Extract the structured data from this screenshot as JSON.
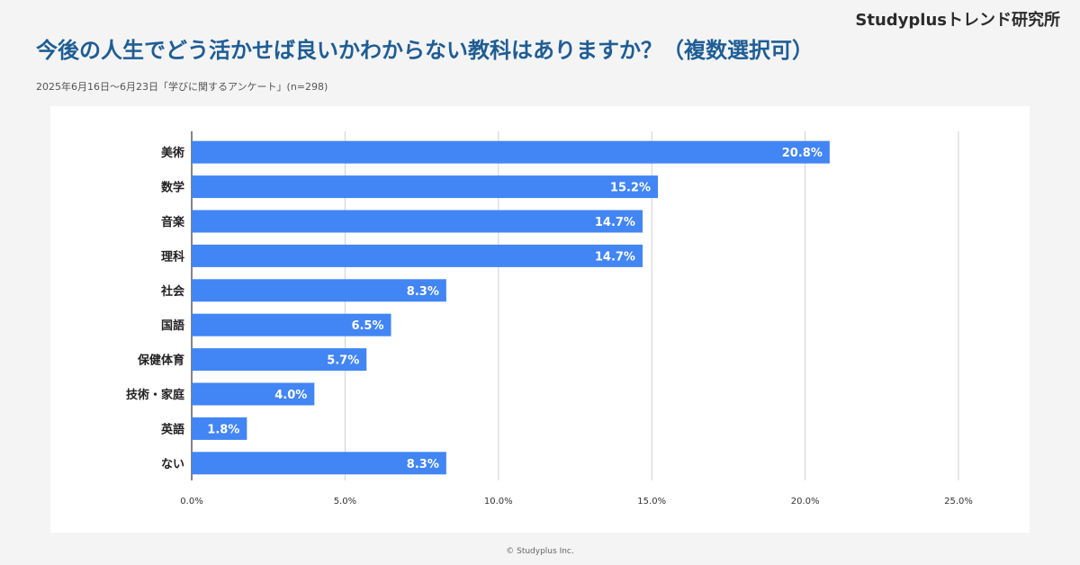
{
  "brand": "Studyplusトレンド研究所",
  "title": "今後の人生でどう活かせば良いかわからない教科はありますか？（複数選択可）",
  "subtitle": "2025年6月16日～6月23日「学びに関するアンケート」(n=298)",
  "footer": "© Studyplus Inc.",
  "colors": {
    "bar": "#4285f4",
    "title": "#1f5d94",
    "grid": "#d0d0d0"
  },
  "chart_data": {
    "type": "bar",
    "orientation": "horizontal",
    "categories": [
      "美術",
      "数学",
      "音楽",
      "理科",
      "社会",
      "国語",
      "保健体育",
      "技術・家庭",
      "英語",
      "ない"
    ],
    "values": [
      20.8,
      15.2,
      14.7,
      14.7,
      8.3,
      6.5,
      5.7,
      4.0,
      1.8,
      8.3
    ],
    "value_labels": [
      "20.8%",
      "15.2%",
      "14.7%",
      "14.7%",
      "8.3%",
      "6.5%",
      "5.7%",
      "4.0%",
      "1.8%",
      "8.3%"
    ],
    "xlim": [
      0,
      25
    ],
    "xticks": [
      0,
      5,
      10,
      15,
      20,
      25
    ],
    "xtick_labels": [
      "0.0%",
      "5.0%",
      "10.0%",
      "15.0%",
      "20.0%",
      "25.0%"
    ],
    "grid": true
  }
}
